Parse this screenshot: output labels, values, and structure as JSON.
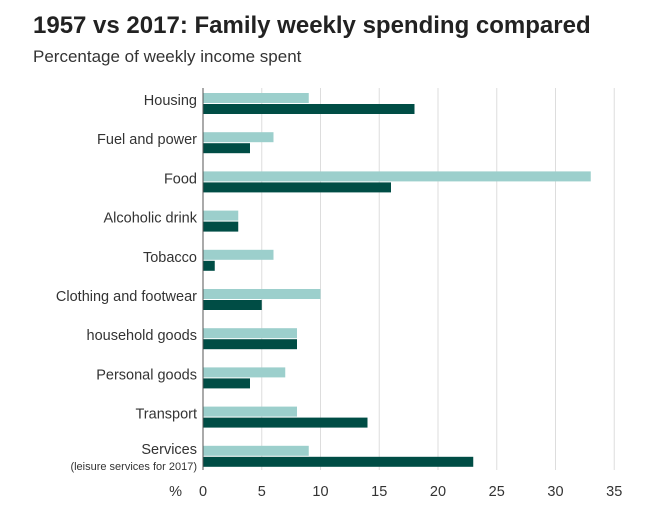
{
  "chart_data": {
    "type": "bar",
    "orientation": "horizontal",
    "title": "1957 vs 2017: Family weekly spending compared",
    "subtitle": "Percentage of weekly income spent",
    "xlabel": "%",
    "xlim": [
      0,
      35
    ],
    "xticks": [
      0,
      5,
      10,
      15,
      20,
      25,
      30,
      35
    ],
    "grid": true,
    "categories": [
      {
        "label": "Housing"
      },
      {
        "label": "Fuel and power"
      },
      {
        "label": "Food"
      },
      {
        "label": "Alcoholic drink"
      },
      {
        "label": "Tobacco"
      },
      {
        "label": "Clothing and footwear"
      },
      {
        "label": "household goods"
      },
      {
        "label": "Personal goods"
      },
      {
        "label": "Transport"
      },
      {
        "label": "Services",
        "sublabel": "(leisure services for 2017)"
      }
    ],
    "series": [
      {
        "name": "1957",
        "color": "#9ccfcc",
        "values": [
          9,
          6,
          33,
          3,
          6,
          10,
          8,
          7,
          8,
          9
        ]
      },
      {
        "name": "2017",
        "color": "#004d45",
        "values": [
          18,
          4,
          16,
          3,
          1,
          5,
          8,
          4,
          14,
          23
        ]
      }
    ]
  }
}
